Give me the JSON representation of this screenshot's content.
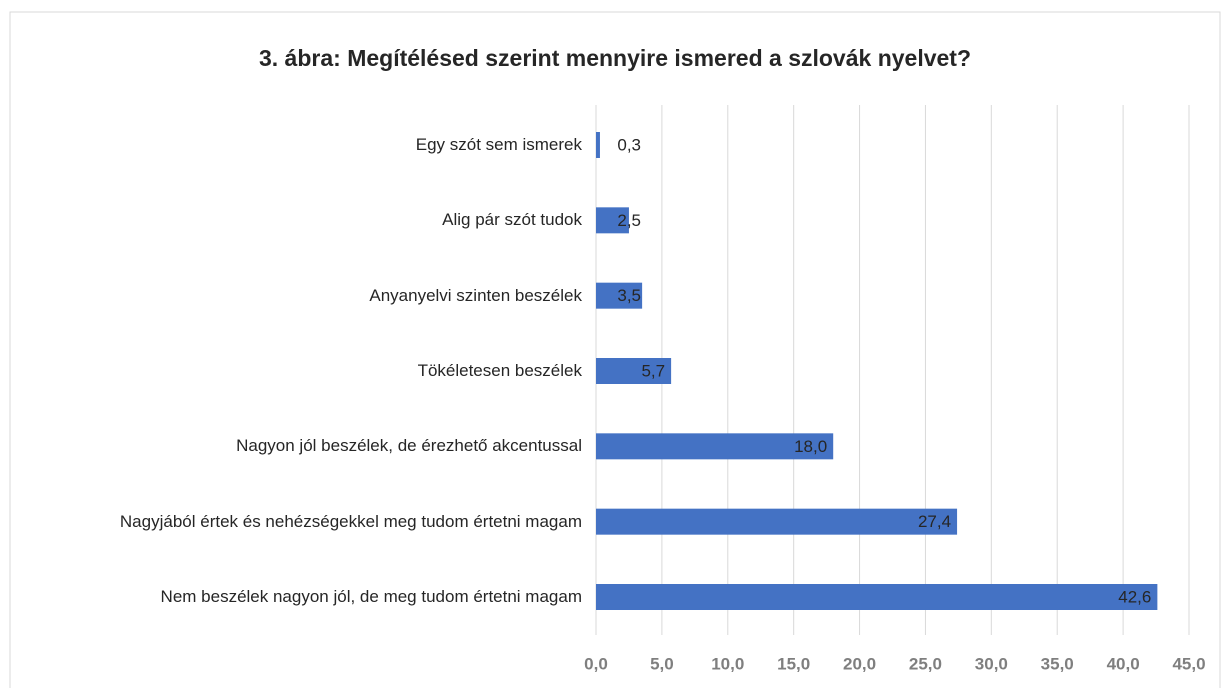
{
  "chart_data": {
    "type": "bar",
    "orientation": "horizontal",
    "title": "3. ábra: Megítélésed szerint mennyire ismered a szlovák nyelvet?",
    "categories": [
      "Egy szót sem ismerek",
      "Alig pár szót tudok",
      "Anyanyelvi szinten beszélek",
      "Tökéletesen beszélek",
      "Nagyon jól beszélek, de érezhető akcentussal",
      "Nagyjából értek és nehézségekkel meg tudom értetni magam",
      "Nem beszélek nagyon jól, de meg tudom értetni magam"
    ],
    "values": [
      0.3,
      2.5,
      3.5,
      5.7,
      18.0,
      27.4,
      42.6
    ],
    "value_labels": [
      "0,3",
      "2,5",
      "3,5",
      "5,7",
      "18,0",
      "27,4",
      "42,6"
    ],
    "color": "#4472c4",
    "xlim": [
      0,
      45
    ],
    "xticks": [
      {
        "value": 0,
        "label": "0,0"
      },
      {
        "value": 5,
        "label": "5,0"
      },
      {
        "value": 10,
        "label": "10,0"
      },
      {
        "value": 15,
        "label": "15,0"
      },
      {
        "value": 20,
        "label": "20,0"
      },
      {
        "value": 25,
        "label": "25,0"
      },
      {
        "value": 30,
        "label": "30,0"
      },
      {
        "value": 35,
        "label": "35,0"
      },
      {
        "value": 40,
        "label": "40,0"
      },
      {
        "value": 45,
        "label": "45,0"
      }
    ],
    "grid": true
  }
}
